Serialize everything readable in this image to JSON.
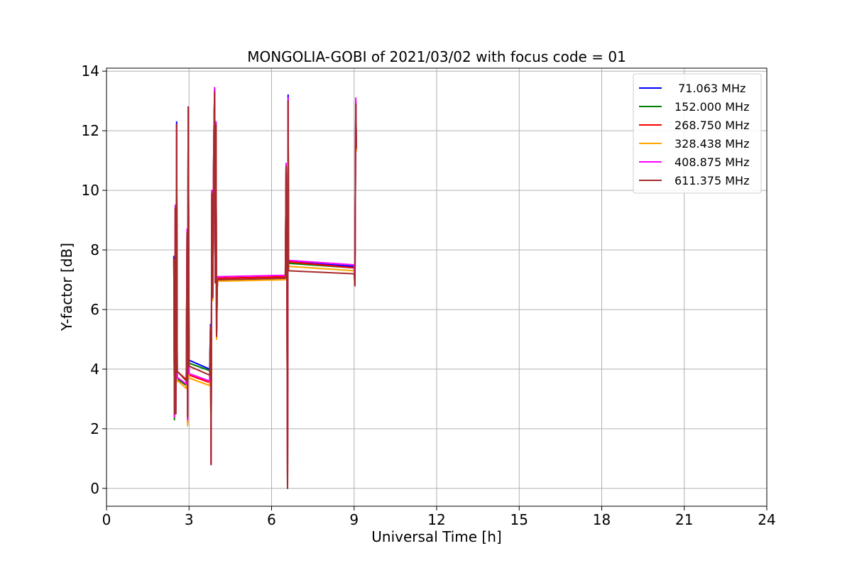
{
  "chart_data": {
    "type": "line",
    "title": "MONGOLIA-GOBI of 2021/03/02 with focus code = 01",
    "xlabel": "Universal Time [h]",
    "ylabel": "Y-factor [dB]",
    "xlim": [
      0,
      24
    ],
    "ylim": [
      -0.6,
      14.1
    ],
    "xticks": [
      0,
      3,
      6,
      9,
      12,
      15,
      18,
      21,
      24
    ],
    "yticks": [
      0,
      2,
      4,
      6,
      8,
      10,
      12,
      14
    ],
    "grid": true,
    "legend_position": "top-right",
    "series": [
      {
        "name": " 71.063 MHz",
        "color": "#0000ff",
        "points": [
          [
            2.45,
            7.8
          ],
          [
            2.47,
            2.4
          ],
          [
            2.5,
            9.5
          ],
          [
            2.52,
            2.6
          ],
          [
            2.55,
            12.3
          ],
          [
            2.57,
            3.6
          ],
          [
            2.6,
            3.7
          ],
          [
            2.9,
            3.5
          ],
          [
            2.93,
            8.7
          ],
          [
            2.95,
            2.4
          ],
          [
            2.97,
            12.8
          ],
          [
            3.0,
            4.3
          ],
          [
            3.75,
            4.0
          ],
          [
            3.78,
            5.5
          ],
          [
            3.8,
            0.8
          ],
          [
            3.83,
            10.0
          ],
          [
            3.86,
            6.5
          ],
          [
            3.9,
            11.6
          ],
          [
            3.93,
            13.4
          ],
          [
            3.95,
            7.0
          ],
          [
            3.98,
            12.3
          ],
          [
            4.0,
            5.2
          ],
          [
            4.03,
            7.05
          ],
          [
            6.5,
            7.1
          ],
          [
            6.53,
            10.9
          ],
          [
            6.56,
            6.5
          ],
          [
            6.58,
            0.0
          ],
          [
            6.6,
            13.2
          ],
          [
            6.62,
            7.6
          ],
          [
            9.0,
            7.45
          ],
          [
            9.03,
            6.8
          ],
          [
            9.06,
            13.0
          ],
          [
            9.08,
            11.4
          ]
        ]
      },
      {
        "name": "152.000 MHz",
        "color": "#008000",
        "points": [
          [
            2.45,
            7.7
          ],
          [
            2.47,
            2.3
          ],
          [
            2.5,
            9.4
          ],
          [
            2.52,
            2.5
          ],
          [
            2.55,
            12.2
          ],
          [
            2.57,
            3.6
          ],
          [
            2.6,
            3.65
          ],
          [
            2.9,
            3.45
          ],
          [
            2.93,
            8.6
          ],
          [
            2.95,
            2.3
          ],
          [
            2.97,
            12.7
          ],
          [
            3.0,
            4.2
          ],
          [
            3.75,
            3.95
          ],
          [
            3.78,
            5.4
          ],
          [
            3.8,
            0.8
          ],
          [
            3.83,
            9.9
          ],
          [
            3.86,
            6.4
          ],
          [
            3.9,
            11.5
          ],
          [
            3.93,
            13.3
          ],
          [
            3.95,
            6.9
          ],
          [
            3.98,
            12.2
          ],
          [
            4.0,
            5.1
          ],
          [
            4.03,
            7.0
          ],
          [
            6.5,
            7.05
          ],
          [
            6.53,
            10.8
          ],
          [
            6.56,
            6.4
          ],
          [
            6.58,
            0.0
          ],
          [
            6.6,
            13.0
          ],
          [
            6.62,
            7.55
          ],
          [
            9.0,
            7.4
          ],
          [
            9.03,
            6.8
          ],
          [
            9.06,
            12.9
          ],
          [
            9.08,
            11.4
          ]
        ]
      },
      {
        "name": "268.750 MHz",
        "color": "#ff0000",
        "points": [
          [
            2.45,
            7.7
          ],
          [
            2.47,
            2.4
          ],
          [
            2.5,
            9.4
          ],
          [
            2.52,
            2.5
          ],
          [
            2.55,
            12.2
          ],
          [
            2.57,
            3.9
          ],
          [
            2.6,
            3.9
          ],
          [
            2.9,
            3.65
          ],
          [
            2.93,
            8.6
          ],
          [
            2.95,
            2.2
          ],
          [
            2.97,
            12.7
          ],
          [
            3.0,
            3.8
          ],
          [
            3.75,
            3.55
          ],
          [
            3.78,
            5.4
          ],
          [
            3.8,
            0.8
          ],
          [
            3.83,
            9.9
          ],
          [
            3.86,
            6.4
          ],
          [
            3.9,
            11.5
          ],
          [
            3.93,
            13.3
          ],
          [
            3.95,
            6.9
          ],
          [
            3.98,
            12.2
          ],
          [
            4.0,
            5.1
          ],
          [
            4.03,
            7.05
          ],
          [
            6.5,
            7.1
          ],
          [
            6.53,
            10.8
          ],
          [
            6.56,
            6.3
          ],
          [
            6.58,
            0.0
          ],
          [
            6.6,
            13.0
          ],
          [
            6.62,
            7.6
          ],
          [
            9.0,
            7.4
          ],
          [
            9.03,
            6.8
          ],
          [
            9.06,
            12.9
          ],
          [
            9.08,
            11.4
          ]
        ]
      },
      {
        "name": "328.438 MHz",
        "color": "#ffa500",
        "points": [
          [
            2.45,
            7.6
          ],
          [
            2.47,
            2.4
          ],
          [
            2.5,
            9.3
          ],
          [
            2.52,
            2.5
          ],
          [
            2.55,
            12.1
          ],
          [
            2.57,
            3.6
          ],
          [
            2.6,
            3.6
          ],
          [
            2.9,
            3.35
          ],
          [
            2.93,
            8.5
          ],
          [
            2.95,
            2.1
          ],
          [
            2.97,
            12.6
          ],
          [
            3.0,
            3.7
          ],
          [
            3.75,
            3.45
          ],
          [
            3.78,
            5.3
          ],
          [
            3.8,
            0.8
          ],
          [
            3.83,
            9.8
          ],
          [
            3.86,
            6.3
          ],
          [
            3.9,
            11.4
          ],
          [
            3.93,
            13.2
          ],
          [
            3.95,
            6.9
          ],
          [
            3.98,
            12.1
          ],
          [
            4.0,
            5.0
          ],
          [
            4.03,
            6.95
          ],
          [
            6.5,
            7.0
          ],
          [
            6.53,
            10.7
          ],
          [
            6.56,
            6.2
          ],
          [
            6.58,
            0.0
          ],
          [
            6.6,
            12.9
          ],
          [
            6.62,
            7.45
          ],
          [
            9.0,
            7.3
          ],
          [
            9.03,
            6.8
          ],
          [
            9.06,
            12.8
          ],
          [
            9.08,
            11.3
          ]
        ]
      },
      {
        "name": "408.875 MHz",
        "color": "#ff00ff",
        "points": [
          [
            2.45,
            7.7
          ],
          [
            2.47,
            2.4
          ],
          [
            2.5,
            9.5
          ],
          [
            2.52,
            2.5
          ],
          [
            2.55,
            12.2
          ],
          [
            2.57,
            3.7
          ],
          [
            2.6,
            3.7
          ],
          [
            2.9,
            3.5
          ],
          [
            2.93,
            8.7
          ],
          [
            2.95,
            2.3
          ],
          [
            2.97,
            12.8
          ],
          [
            3.0,
            3.85
          ],
          [
            3.75,
            3.6
          ],
          [
            3.78,
            5.4
          ],
          [
            3.8,
            0.8
          ],
          [
            3.83,
            10.0
          ],
          [
            3.86,
            6.4
          ],
          [
            3.9,
            11.6
          ],
          [
            3.93,
            13.45
          ],
          [
            3.95,
            7.0
          ],
          [
            3.98,
            12.3
          ],
          [
            4.0,
            5.2
          ],
          [
            4.03,
            7.1
          ],
          [
            6.5,
            7.15
          ],
          [
            6.53,
            10.9
          ],
          [
            6.56,
            6.4
          ],
          [
            6.58,
            0.0
          ],
          [
            6.6,
            13.1
          ],
          [
            6.62,
            7.65
          ],
          [
            9.0,
            7.5
          ],
          [
            9.03,
            6.8
          ],
          [
            9.06,
            13.1
          ],
          [
            9.08,
            11.4
          ]
        ]
      },
      {
        "name": "611.375 MHz",
        "color": "#a52a2a",
        "points": [
          [
            2.45,
            7.7
          ],
          [
            2.47,
            2.5
          ],
          [
            2.5,
            9.4
          ],
          [
            2.52,
            2.5
          ],
          [
            2.55,
            12.2
          ],
          [
            2.57,
            3.9
          ],
          [
            2.6,
            3.9
          ],
          [
            2.9,
            3.6
          ],
          [
            2.93,
            8.6
          ],
          [
            2.95,
            2.4
          ],
          [
            2.97,
            12.8
          ],
          [
            3.0,
            4.1
          ],
          [
            3.75,
            3.8
          ],
          [
            3.78,
            5.4
          ],
          [
            3.8,
            0.8
          ],
          [
            3.83,
            9.9
          ],
          [
            3.86,
            6.4
          ],
          [
            3.9,
            11.5
          ],
          [
            3.93,
            13.3
          ],
          [
            3.95,
            6.9
          ],
          [
            3.98,
            12.2
          ],
          [
            4.0,
            5.1
          ],
          [
            4.03,
            7.0
          ],
          [
            6.5,
            7.05
          ],
          [
            6.53,
            10.8
          ],
          [
            6.56,
            6.3
          ],
          [
            6.58,
            0.0
          ],
          [
            6.6,
            13.0
          ],
          [
            6.62,
            7.3
          ],
          [
            9.0,
            7.2
          ],
          [
            9.03,
            6.8
          ],
          [
            9.06,
            12.9
          ],
          [
            9.08,
            11.4
          ]
        ]
      }
    ]
  }
}
